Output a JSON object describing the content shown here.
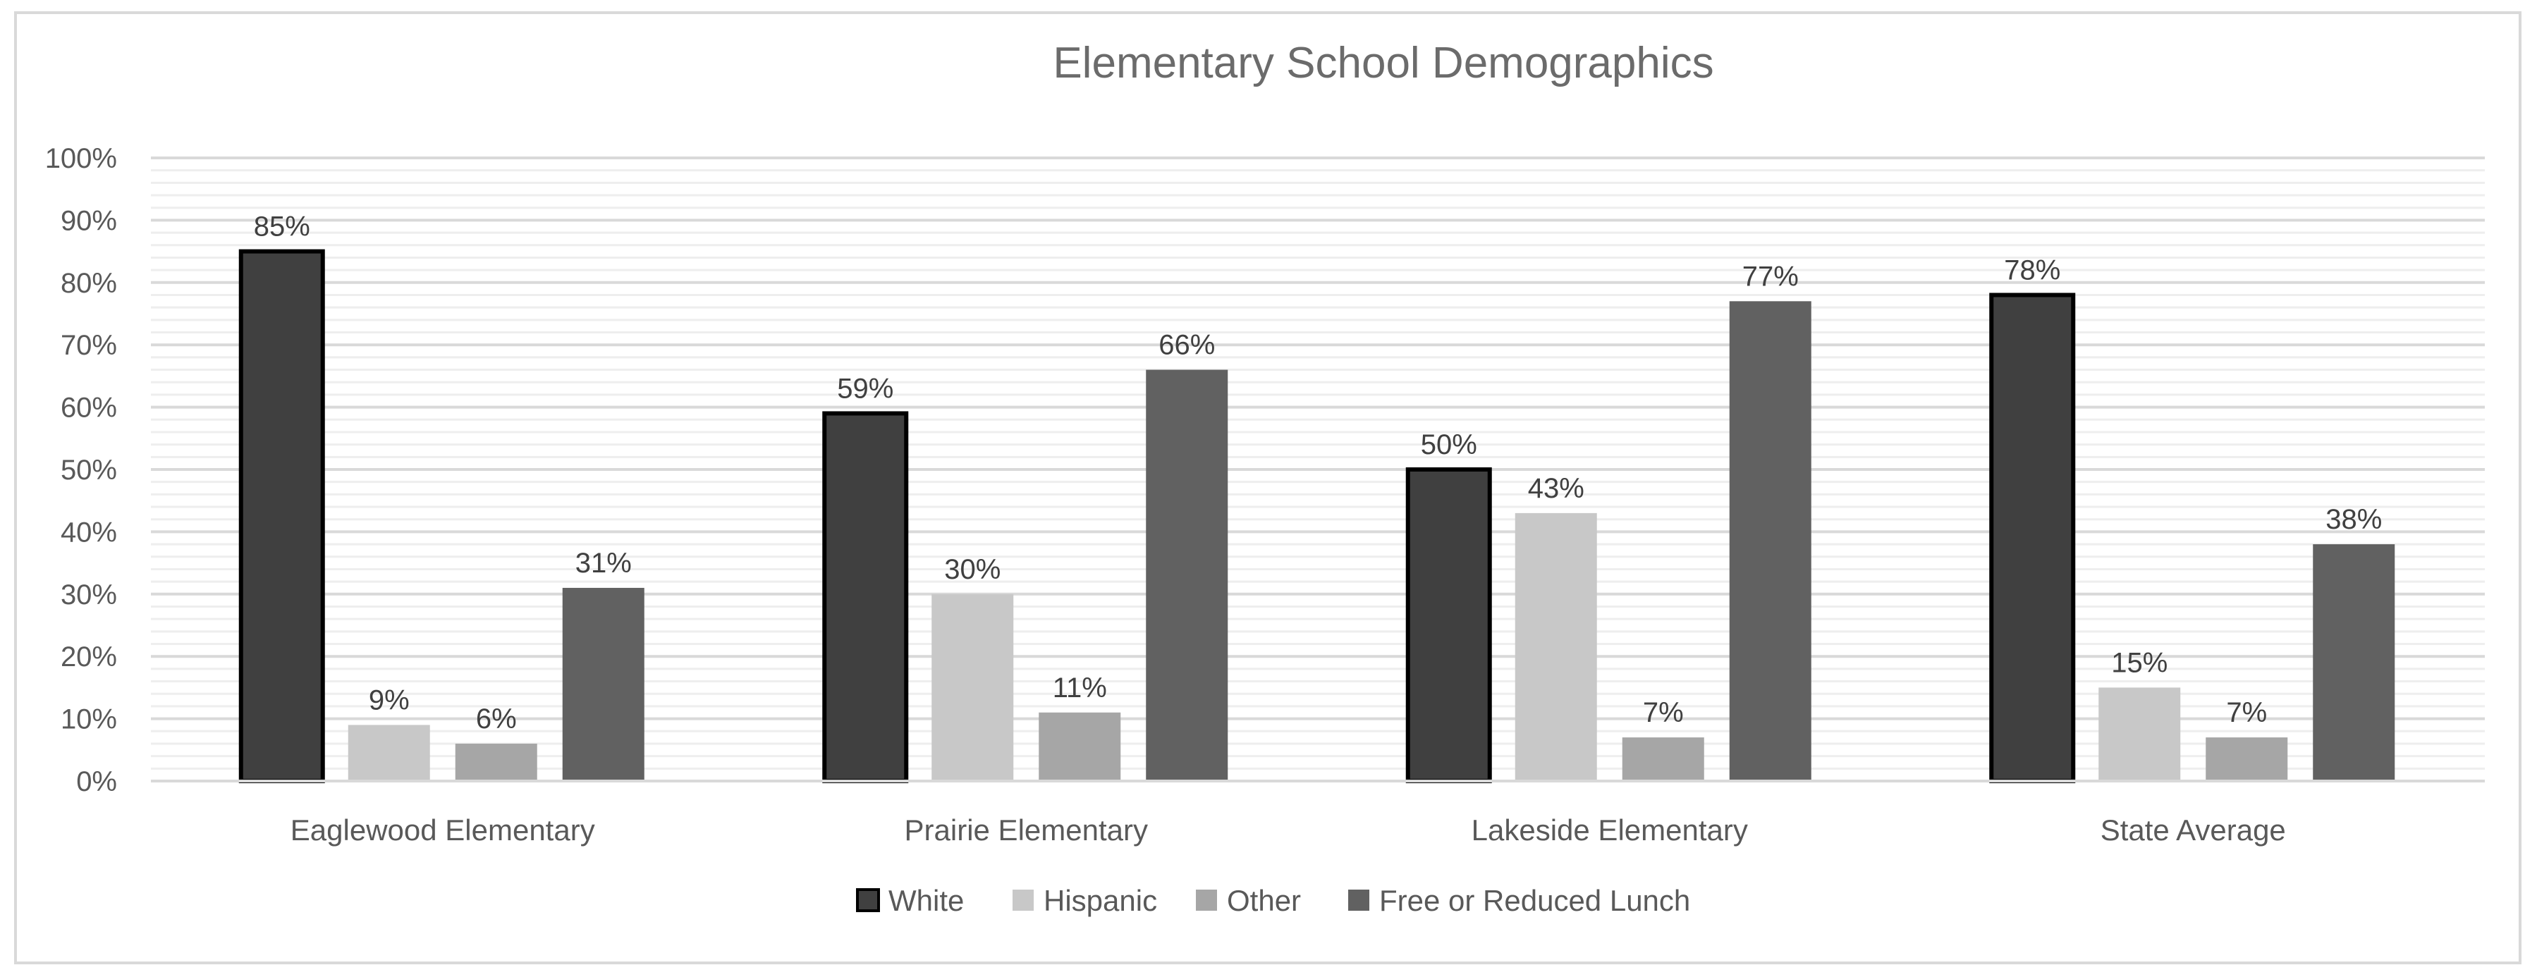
{
  "chart_data": {
    "type": "bar",
    "title": "Elementary School Demographics",
    "xlabel": "",
    "ylabel": "",
    "ylim": [
      0,
      100
    ],
    "yticks": [
      "0%",
      "10%",
      "20%",
      "30%",
      "40%",
      "50%",
      "60%",
      "70%",
      "80%",
      "90%",
      "100%"
    ],
    "categories": [
      "Eaglewood Elementary",
      "Prairie Elementary",
      "Lakeside Elementary",
      "State Average"
    ],
    "series": [
      {
        "name": "White",
        "values": [
          85,
          59,
          50,
          78
        ],
        "labels": [
          "85%",
          "59%",
          "50%",
          "78%"
        ],
        "color": "#404040",
        "outlined": true
      },
      {
        "name": "Hispanic",
        "values": [
          9,
          30,
          43,
          15
        ],
        "labels": [
          "9%",
          "30%",
          "43%",
          "15%"
        ],
        "color": "#c8c8c8",
        "outlined": false
      },
      {
        "name": "Other",
        "values": [
          6,
          11,
          7,
          7
        ],
        "labels": [
          "6%",
          "11%",
          "7%",
          "7%"
        ],
        "color": "#a6a6a6",
        "outlined": false
      },
      {
        "name": "Free or Reduced Lunch",
        "values": [
          31,
          66,
          77,
          38
        ],
        "labels": [
          "31%",
          "66%",
          "77%",
          "38%"
        ],
        "color": "#616161",
        "outlined": false
      }
    ],
    "grid": true,
    "legend": "bottom"
  }
}
